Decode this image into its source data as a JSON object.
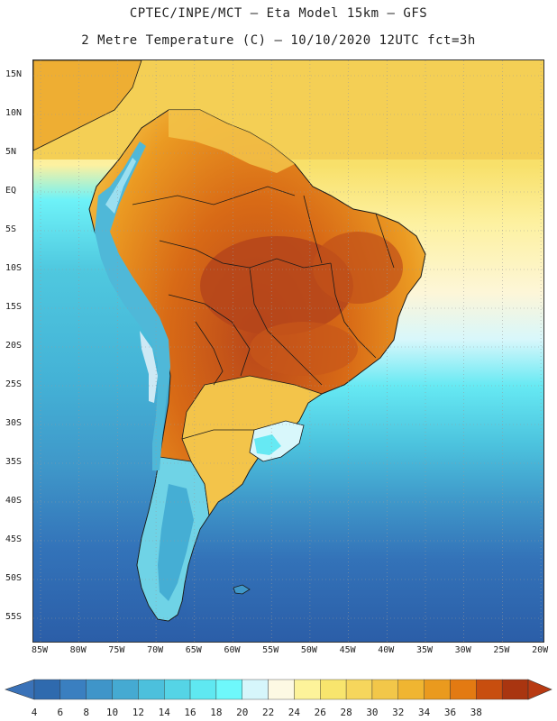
{
  "title_line1": "CPTEC/INPE/MCT –  Eta Model 15km – GFS",
  "title_line2": "2 Metre Temperature (C) – 10/10/2020 12UTC fct=3h",
  "lat_labels": [
    "15N",
    "10N",
    "5N",
    "EQ",
    "5S",
    "10S",
    "15S",
    "20S",
    "25S",
    "30S",
    "35S",
    "40S",
    "45S",
    "50S",
    "55S"
  ],
  "lon_labels": [
    "85W",
    "80W",
    "75W",
    "70W",
    "65W",
    "60W",
    "55W",
    "50W",
    "45W",
    "40W",
    "35W",
    "30W",
    "25W",
    "20W"
  ],
  "colorbar": {
    "ticks": [
      "4",
      "6",
      "8",
      "10",
      "12",
      "14",
      "16",
      "18",
      "20",
      "22",
      "24",
      "26",
      "28",
      "30",
      "32",
      "34",
      "36",
      "38"
    ],
    "low_color": "#3a72b8",
    "high_color": "#b83a12",
    "colors": [
      "#2f6aae",
      "#3a7fc0",
      "#3f95c9",
      "#45aad2",
      "#4cc0dc",
      "#55d4e6",
      "#5fe8f1",
      "#6ef8fb",
      "#d6f6fb",
      "#fdf9e3",
      "#fdf39a",
      "#f8e56d",
      "#f6d65c",
      "#f2c749",
      "#f0b531",
      "#ea9a1e",
      "#e37a12",
      "#c84e0f",
      "#a93510"
    ]
  },
  "map": {
    "ocean_cold": "#2f63ad",
    "ocean_mid": "#4aa9d4",
    "ocean_warm": "#5fe6f0",
    "tropical_sea": "#f6d65c",
    "land_hot": "#c6561a",
    "land_warm": "#e89320",
    "andes": "#4fb8d8",
    "border_color": "#1a1a1a"
  }
}
